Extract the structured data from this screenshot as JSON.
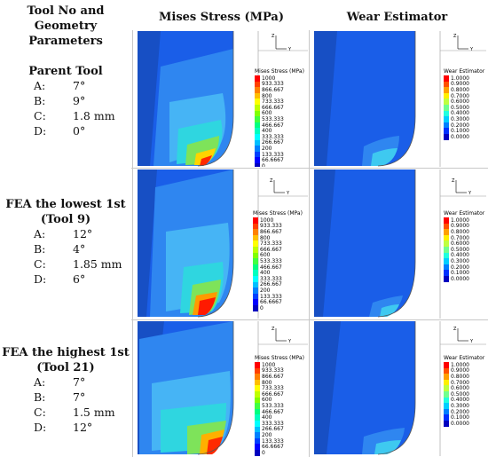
{
  "headers": {
    "params_line1": "Tool No and",
    "params_line2": "Geometry Parameters",
    "mises": "Mises Stress (MPa)",
    "wear": "Wear Estimator"
  },
  "rows": [
    {
      "title_lines": [
        "Parent Tool"
      ],
      "params": [
        {
          "k": "A:",
          "v": "7°"
        },
        {
          "k": "B:",
          "v": "9°"
        },
        {
          "k": "C:",
          "v": "1.8 mm"
        },
        {
          "k": "D:",
          "v": "0°"
        }
      ]
    },
    {
      "title_lines": [
        "FEA the lowest 1st",
        "(Tool 9)"
      ],
      "params": [
        {
          "k": "A:",
          "v": "12°"
        },
        {
          "k": "B:",
          "v": "4°"
        },
        {
          "k": "C:",
          "v": "1.85 mm"
        },
        {
          "k": "D:",
          "v": "6°"
        }
      ]
    },
    {
      "title_lines": [
        "FEA the highest 1st",
        "(Tool 21)"
      ],
      "params": [
        {
          "k": "A:",
          "v": "7°"
        },
        {
          "k": "B:",
          "v": "7°"
        },
        {
          "k": "C:",
          "v": "1.5 mm"
        },
        {
          "k": "D:",
          "v": "12°"
        }
      ]
    }
  ],
  "mises_legend": {
    "title": "Mises Stress (MPa)",
    "values": [
      "1000",
      "933.333",
      "866.667",
      "800",
      "733.333",
      "666.667",
      "600",
      "533.333",
      "466.667",
      "400",
      "333.333",
      "266.667",
      "200",
      "133.333",
      "66.6667",
      "0"
    ]
  },
  "wear_legend": {
    "title": "Wear Estimator",
    "values": [
      "1.0000",
      "0.9000",
      "0.8000",
      "0.7000",
      "0.6000",
      "0.5000",
      "0.4000",
      "0.3000",
      "0.2000",
      "0.1000",
      "0.0000"
    ]
  },
  "axis_labels": {
    "z": "Z",
    "y": "Y"
  },
  "colors": {
    "mises_scale": [
      "#ff0000",
      "#ff4000",
      "#ff8000",
      "#ffbf00",
      "#ffff00",
      "#bfff00",
      "#80ff00",
      "#40ff40",
      "#00ff80",
      "#00ffbf",
      "#00ffff",
      "#00bfff",
      "#0080ff",
      "#0040ff",
      "#0000ff",
      "#0000bf"
    ],
    "wear_scale": [
      "#ff0000",
      "#ff5000",
      "#ff9f00",
      "#ffef00",
      "#bfff40",
      "#70ff8f",
      "#20ffdf",
      "#00cfff",
      "#007fff",
      "#0030ff",
      "#0000c0"
    ],
    "tool_body": "#1a5ee8",
    "tool_light": "#2f86f0"
  }
}
